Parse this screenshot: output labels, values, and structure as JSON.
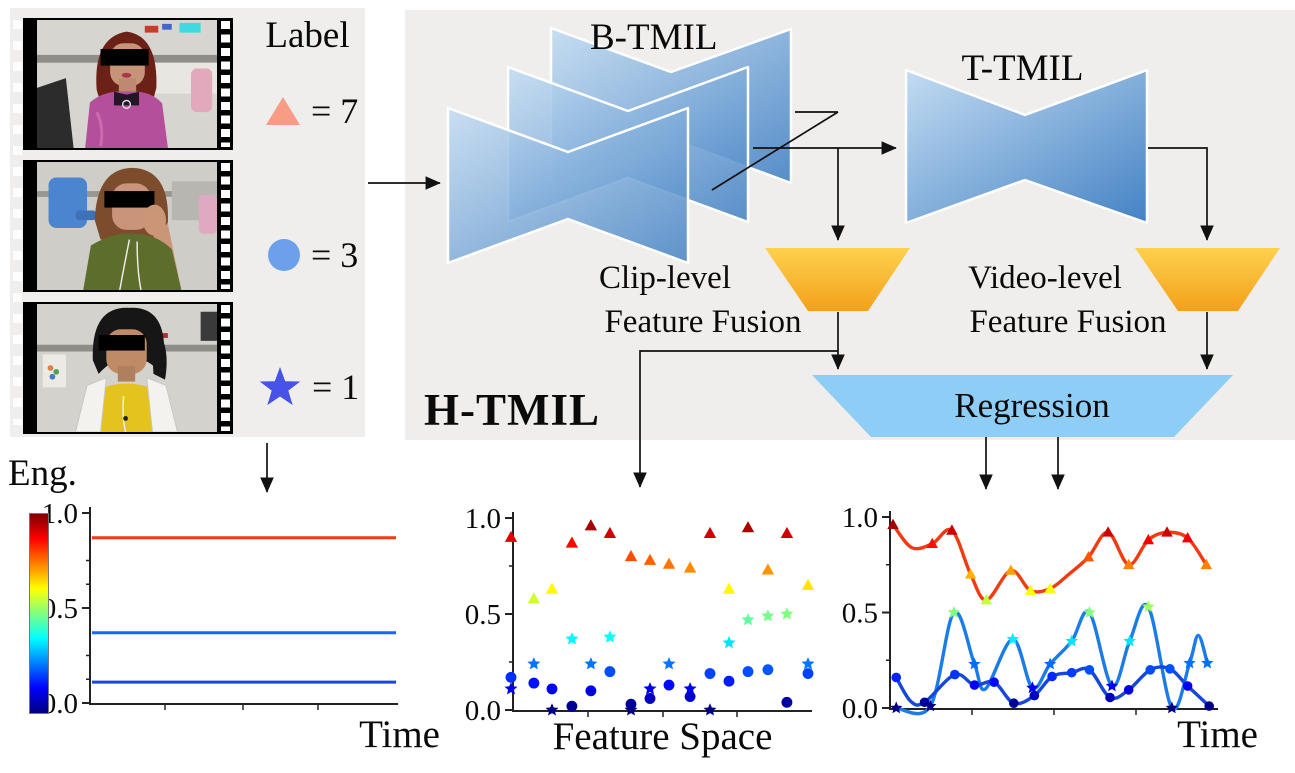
{
  "legend": {
    "title": "Label",
    "items": [
      {
        "name": "high-engagement",
        "marker": "triangle",
        "color": "#f89c85",
        "label": "= 7",
        "value": 7
      },
      {
        "name": "mid-engagement",
        "marker": "circle",
        "color": "#6ca0ea",
        "label": "= 3",
        "value": 3
      },
      {
        "name": "low-engagement",
        "marker": "star",
        "color": "#4753e6",
        "label": "= 1",
        "value": 1
      }
    ]
  },
  "videos": {
    "count": 3,
    "items": [
      {
        "description": "student in pink jacket, face censored",
        "engagement_label": 7
      },
      {
        "description": "student in green shirt resting chin on hand, face censored",
        "engagement_label": 3
      },
      {
        "description": "student in yellow shirt and white jacket, face censored",
        "engagement_label": 1
      }
    ]
  },
  "diagram": {
    "model_label": "H-TMIL",
    "b_tmil_label": "B-TMIL",
    "t_tmil_label": "T-TMIL",
    "clip_fusion_line1": "Clip-level",
    "clip_fusion_line2": "Feature Fusion",
    "video_fusion_line1": "Video-level",
    "video_fusion_line2": "Feature Fusion",
    "regression_label": "Regression",
    "colors": {
      "panel_gray": "#efeeed",
      "block_blue_light": "#bdd8f0",
      "block_blue_dark": "#4886c6",
      "fusion_yellow_top": "#ffd14d",
      "fusion_yellow_bottom": "#f3a01a",
      "regression_blue": "#8ecdf5",
      "arrow_black": "#111111"
    }
  },
  "chart_data": [
    {
      "id": "eng-time",
      "type": "line",
      "ylabel": "Eng.",
      "xlabel": "Time",
      "ylim": [
        0.0,
        1.0
      ],
      "yticks": [
        0.0,
        0.5,
        1.0
      ],
      "yticks_minor": [
        0.125,
        0.25,
        0.625,
        0.75
      ],
      "colorbar": {
        "colormap": "jet",
        "min": 0.0,
        "max": 1.0
      },
      "series": [
        {
          "name": "label-7-line",
          "color": "#f23a12",
          "value": 0.87
        },
        {
          "name": "label-3-line",
          "color": "#1767f0",
          "value": 0.37
        },
        {
          "name": "label-1-line",
          "color": "#1a45e0",
          "value": 0.11
        }
      ]
    },
    {
      "id": "feature-space",
      "type": "scatter",
      "xlabel": "Feature Space",
      "ylim": [
        0.0,
        1.0
      ],
      "yticks": [
        0.0,
        0.5,
        1.0
      ],
      "yticks_minor": [
        0.25,
        0.75
      ],
      "marker_colormap": "jet",
      "x": [
        0.0,
        0.077,
        0.138,
        0.205,
        0.269,
        0.333,
        0.404,
        0.468,
        0.532,
        0.603,
        0.67,
        0.734,
        0.798,
        0.865,
        0.929,
        1.0
      ],
      "series": [
        {
          "name": "video-7-clips",
          "marker": "triangle",
          "values": [
            0.9,
            0.58,
            0.63,
            0.87,
            0.96,
            0.92,
            0.8,
            0.78,
            0.76,
            0.74,
            0.92,
            0.63,
            0.95,
            0.73,
            0.92,
            0.65
          ]
        },
        {
          "name": "video-3-clips",
          "marker": "circle",
          "values": [
            0.17,
            0.14,
            0.11,
            0.02,
            0.1,
            0.2,
            0.03,
            0.06,
            0.13,
            0.07,
            0.19,
            0.15,
            0.2,
            0.21,
            0.04,
            0.19
          ]
        },
        {
          "name": "video-1-clips",
          "marker": "star",
          "values": [
            0.11,
            0.24,
            0.0,
            0.37,
            0.24,
            0.38,
            0.0,
            0.11,
            0.24,
            0.11,
            0.0,
            0.35,
            0.47,
            0.49,
            0.5,
            0.24
          ]
        }
      ]
    },
    {
      "id": "time-curves",
      "type": "line",
      "xlabel": "Time",
      "ylim": [
        0.0,
        1.0
      ],
      "yticks": [
        0.0,
        0.5,
        1.0
      ],
      "yticks_minor": [
        0.25,
        0.75
      ],
      "marker_colormap": "jet",
      "series": [
        {
          "name": "video-7-curve",
          "marker": "triangle",
          "line_color": "#f13c12",
          "x": [
            0.0,
            0.058,
            0.122,
            0.183,
            0.241,
            0.29,
            0.366,
            0.427,
            0.488,
            0.546,
            0.607,
            0.668,
            0.732,
            0.793,
            0.851,
            0.915,
            0.973
          ],
          "y": [
            0.96,
            0.84,
            0.86,
            0.93,
            0.7,
            0.565,
            0.72,
            0.615,
            0.625,
            0.7,
            0.79,
            0.92,
            0.75,
            0.88,
            0.92,
            0.89,
            0.75
          ],
          "marker_at": [
            0,
            2,
            3,
            4,
            5,
            6,
            7,
            8,
            10,
            11,
            12,
            13,
            14,
            15,
            16
          ]
        },
        {
          "name": "video-1-curve",
          "marker": "star",
          "line_color": "#1b7ce8",
          "x": [
            0.01,
            0.116,
            0.189,
            0.253,
            0.287,
            0.372,
            0.433,
            0.488,
            0.555,
            0.61,
            0.68,
            0.735,
            0.793,
            0.866,
            0.921,
            0.948,
            0.976
          ],
          "y": [
            0.0,
            0.01,
            0.5,
            0.23,
            0.1,
            0.36,
            0.105,
            0.23,
            0.35,
            0.5,
            0.115,
            0.35,
            0.53,
            0.0,
            0.235,
            0.38,
            0.235
          ],
          "marker_at": [
            0,
            1,
            2,
            3,
            5,
            6,
            7,
            8,
            9,
            10,
            11,
            12,
            13,
            14,
            16
          ]
        },
        {
          "name": "video-3-curve",
          "marker": "circle",
          "line_color": "#1547d8",
          "x": [
            0.01,
            0.055,
            0.098,
            0.192,
            0.253,
            0.314,
            0.375,
            0.439,
            0.494,
            0.555,
            0.61,
            0.674,
            0.732,
            0.799,
            0.86,
            0.915,
            0.982
          ],
          "y": [
            0.16,
            0.035,
            0.03,
            0.175,
            0.12,
            0.135,
            0.025,
            0.065,
            0.165,
            0.185,
            0.2,
            0.055,
            0.095,
            0.2,
            0.205,
            0.115,
            0.01
          ],
          "marker_at": [
            0,
            2,
            3,
            4,
            5,
            6,
            7,
            8,
            9,
            10,
            11,
            12,
            13,
            14,
            15,
            16
          ]
        }
      ]
    }
  ]
}
